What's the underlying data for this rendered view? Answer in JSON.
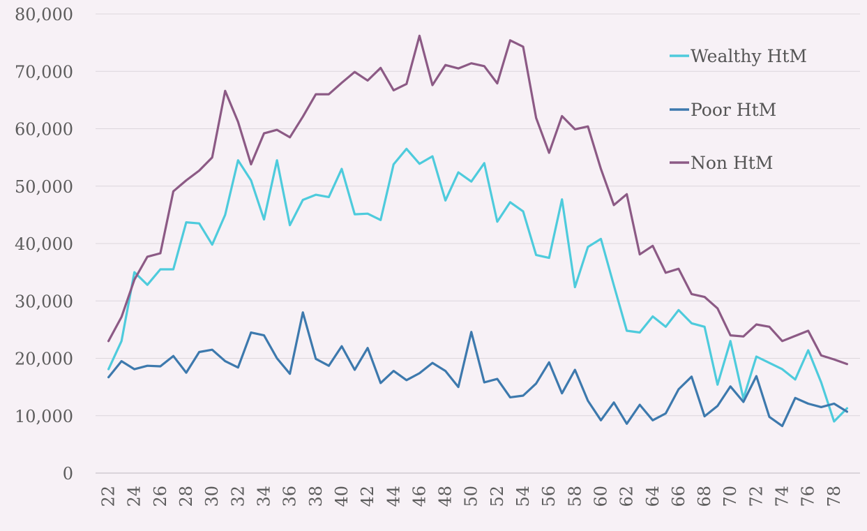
{
  "chart_data": {
    "type": "line",
    "title": "",
    "xlabel": "",
    "ylabel": "",
    "x": [
      22,
      23,
      24,
      25,
      26,
      27,
      28,
      29,
      30,
      31,
      32,
      33,
      34,
      35,
      36,
      37,
      38,
      39,
      40,
      41,
      42,
      43,
      44,
      45,
      46,
      47,
      48,
      49,
      50,
      51,
      52,
      53,
      54,
      55,
      56,
      57,
      58,
      59,
      60,
      61,
      62,
      63,
      64,
      65,
      66,
      67,
      68,
      69,
      70,
      71,
      72,
      73,
      74,
      75,
      76,
      77,
      78,
      79
    ],
    "x_tick_labels": [
      "22",
      "24",
      "26",
      "28",
      "30",
      "32",
      "34",
      "36",
      "38",
      "40",
      "42",
      "44",
      "46",
      "48",
      "50",
      "52",
      "54",
      "56",
      "58",
      "60",
      "62",
      "64",
      "66",
      "68",
      "70",
      "72",
      "74",
      "76",
      "78"
    ],
    "ylim": [
      0,
      80000
    ],
    "y_ticks": [
      0,
      10000,
      20000,
      30000,
      40000,
      50000,
      60000,
      70000,
      80000
    ],
    "y_tick_labels": [
      "0",
      "10,000",
      "20,000",
      "30,000",
      "40,000",
      "50,000",
      "60,000",
      "70,000",
      "80,000"
    ],
    "grid": "horizontal",
    "legend_position": "top-right",
    "series": [
      {
        "name": "Wealthy HtM",
        "color": "#4ecbdc",
        "values": [
          18100,
          23000,
          35000,
          32800,
          35500,
          35500,
          43700,
          43500,
          39800,
          45000,
          54500,
          51000,
          44200,
          54500,
          43200,
          47600,
          48500,
          48100,
          53000,
          45100,
          45200,
          44100,
          53800,
          56500,
          53900,
          55200,
          47500,
          52400,
          50800,
          54000,
          43800,
          47200,
          45600,
          38000,
          37500,
          47700,
          32400,
          39400,
          40800,
          32700,
          24800,
          24500,
          27300,
          25500,
          28400,
          26100,
          25500,
          15400,
          23000,
          13000,
          20300,
          19200,
          18100,
          16300,
          21400,
          15800,
          9000,
          11300
        ]
      },
      {
        "name": "Poor HtM",
        "color": "#3d79ad",
        "values": [
          16700,
          19500,
          18100,
          18700,
          18600,
          20400,
          17500,
          21100,
          21500,
          19500,
          18400,
          24500,
          24000,
          20000,
          17300,
          28000,
          19900,
          18700,
          22100,
          18000,
          21800,
          15700,
          17800,
          16200,
          17400,
          19200,
          17800,
          15000,
          24600,
          15800,
          16400,
          13200,
          13500,
          15600,
          19300,
          13900,
          18000,
          12600,
          9200,
          12300,
          8600,
          11900,
          9200,
          10400,
          14600,
          16800,
          9900,
          11700,
          15100,
          12400,
          16900,
          9800,
          8200,
          13100,
          12100,
          11500,
          12100,
          10700
        ]
      },
      {
        "name": "Non HtM",
        "color": "#8c5a85",
        "values": [
          23000,
          27200,
          33700,
          37700,
          38300,
          49100,
          51000,
          52700,
          55000,
          66600,
          61200,
          53800,
          59200,
          59800,
          58500,
          62100,
          66000,
          66000,
          68000,
          69900,
          68400,
          70600,
          66700,
          67800,
          76200,
          67600,
          71100,
          70500,
          71400,
          70900,
          67900,
          75400,
          74300,
          61900,
          55800,
          62200,
          59900,
          60400,
          53000,
          46700,
          48600,
          38100,
          39600,
          34900,
          35600,
          31200,
          30700,
          28700,
          24000,
          23800,
          25900,
          25500,
          23000,
          23900,
          24800,
          20500,
          19800,
          19000
        ]
      }
    ]
  }
}
